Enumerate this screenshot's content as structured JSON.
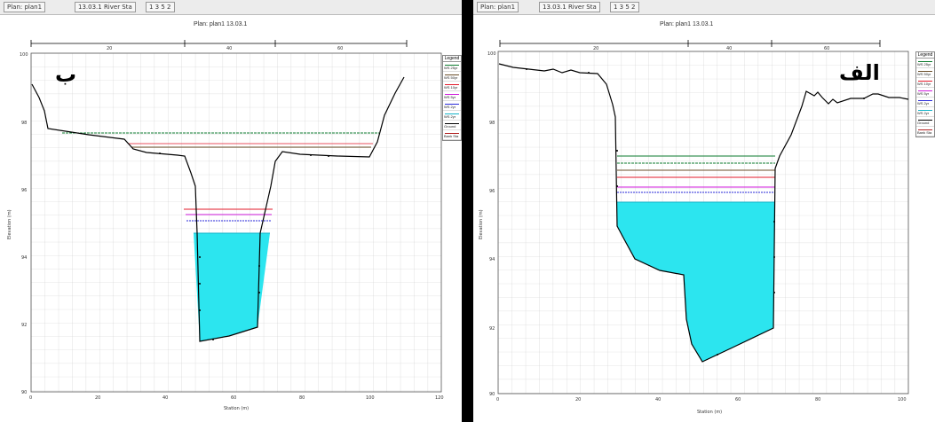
{
  "panels": [
    {
      "id": "left",
      "letter": "ب",
      "title": "Plan: plan1   13.03.1",
      "toolbar": [
        "Plan: plan1",
        "13.03.1 River Sta",
        "1 3 5 2"
      ],
      "legend_title": "Legend",
      "legend": [
        {
          "label": "WS 25yr",
          "color": "#0b7a2c"
        },
        {
          "label": "WS 50yr",
          "color": "#6b4f2a"
        },
        {
          "label": "WS 10yr",
          "color": "#e3192a"
        },
        {
          "label": "WS 5yr",
          "color": "#d01edc"
        },
        {
          "label": "WS 2yr",
          "color": "#2a2ad8"
        },
        {
          "label": "WS 2yr",
          "color": "#15b3c8"
        },
        {
          "label": "Ground",
          "color": "#000000"
        },
        {
          "label": "Bank Sta",
          "color": "#b22222"
        }
      ],
      "xticks": [
        "0",
        "20",
        "40",
        "60",
        "80",
        "100",
        "120"
      ],
      "yticks": [
        "100",
        "98",
        "96",
        "94",
        "92",
        "90"
      ],
      "xlabel": "Station (m)",
      "ylabel": "Elevation (m)",
      "topticks": [
        "20",
        "40",
        "60"
      ]
    },
    {
      "id": "right",
      "letter": "الف",
      "title": "Plan: plan1   13.03.1",
      "toolbar": [
        "Plan: plan1",
        "13.03.1 River Sta",
        "1 3 5 2"
      ],
      "legend_title": "Legend",
      "legend": [
        {
          "label": "WS 25yr",
          "color": "#0b7a2c"
        },
        {
          "label": "WS 50yr",
          "color": "#6b4f2a"
        },
        {
          "label": "WS 10yr",
          "color": "#e3192a"
        },
        {
          "label": "WS 5yr",
          "color": "#d01edc"
        },
        {
          "label": "WS 2yr",
          "color": "#2a2ad8"
        },
        {
          "label": "WS 2yr",
          "color": "#15b3c8"
        },
        {
          "label": "Ground",
          "color": "#000000"
        },
        {
          "label": "Bank Sta",
          "color": "#b22222"
        }
      ],
      "xticks": [
        "0",
        "20",
        "40",
        "60",
        "80",
        "100"
      ],
      "yticks": [
        "100",
        "98",
        "96",
        "94",
        "92",
        "90"
      ],
      "xlabel": "Station (m)",
      "ylabel": "Elevation (m)",
      "topticks": [
        "20",
        "40",
        "60"
      ]
    }
  ],
  "colors": {
    "water": "#2ce5ef",
    "ground": "#000000",
    "grid": "#c9c9c9",
    "plot_border": "#555555"
  }
}
